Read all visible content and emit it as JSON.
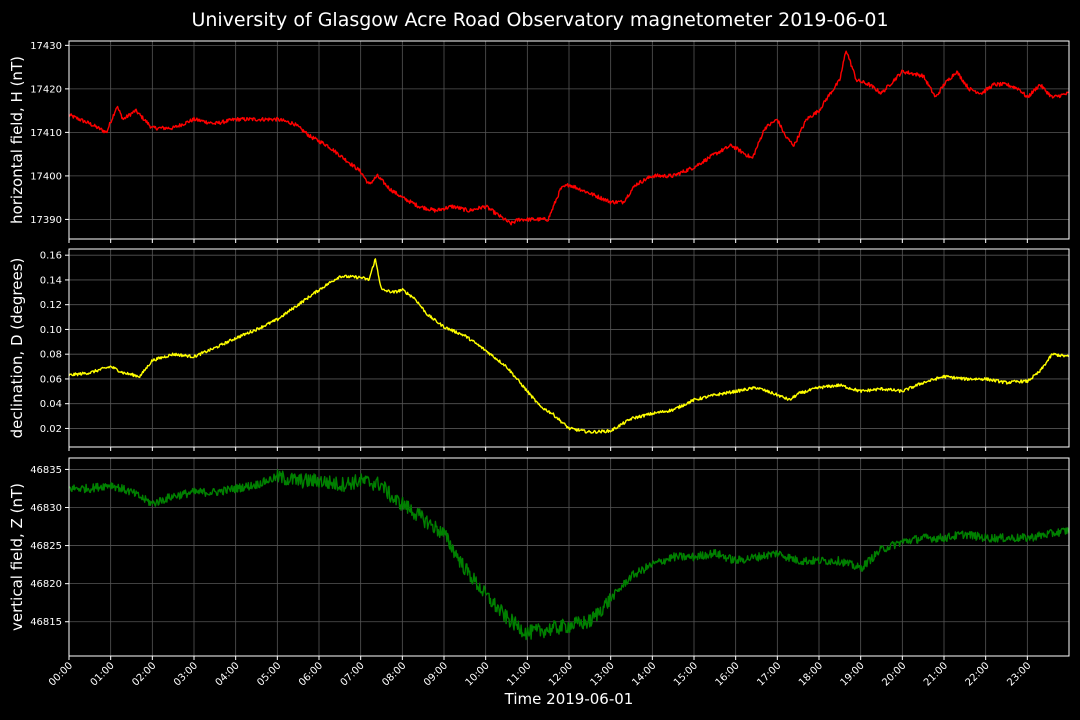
{
  "title": "University of Glasgow Acre Road Observatory magnetometer 2019-06-01",
  "xlabel": "Time 2019-06-01",
  "chart_data": [
    {
      "type": "line",
      "name": "horizontal",
      "ylabel": "horizontal field, H (nT)",
      "color": "#ff0000",
      "ylim": [
        17385.5,
        17431
      ],
      "yticks": [
        17390,
        17400,
        17410,
        17420,
        17430
      ],
      "grid": true,
      "x_hours": [
        0,
        0.5,
        0.9,
        1.15,
        1.3,
        1.6,
        2.0,
        2.5,
        3.0,
        3.5,
        4.0,
        4.5,
        5.0,
        5.4,
        5.8,
        6.2,
        6.6,
        7.0,
        7.2,
        7.4,
        7.7,
        8.0,
        8.4,
        8.8,
        9.2,
        9.6,
        10.0,
        10.3,
        10.6,
        10.8,
        11.2,
        11.5,
        11.8,
        12.0,
        12.5,
        13.0,
        13.3,
        13.6,
        14.0,
        14.5,
        15.0,
        15.5,
        15.9,
        16.4,
        16.7,
        17.0,
        17.2,
        17.4,
        17.7,
        18.0,
        18.2,
        18.5,
        18.65,
        18.9,
        19.2,
        19.5,
        20.0,
        20.5,
        20.8,
        21.0,
        21.3,
        21.6,
        21.9,
        22.2,
        22.5,
        22.8,
        23.0,
        23.3,
        23.6,
        24.0
      ],
      "y": [
        17414,
        17412,
        17410,
        17416,
        17413,
        17415,
        17411,
        17411,
        17413,
        17412,
        17413,
        17413,
        17413,
        17412,
        17409,
        17407,
        17404,
        17401,
        17398,
        17400,
        17397,
        17395,
        17393,
        17392,
        17393,
        17392,
        17393,
        17391,
        17389,
        17390,
        17390,
        17390,
        17397,
        17398,
        17396,
        17394,
        17394,
        17398,
        17400,
        17400,
        17402,
        17405,
        17407,
        17404,
        17411,
        17413,
        17409,
        17407,
        17413,
        17415,
        17418,
        17422,
        17429,
        17422,
        17421,
        17419,
        17424,
        17423,
        17418,
        17421,
        17424,
        17420,
        17419,
        17421,
        17421,
        17420,
        17418,
        17421,
        17418,
        17419
      ]
    },
    {
      "type": "line",
      "name": "declination",
      "ylabel": "declination, D (degrees)",
      "color": "#ffff00",
      "ylim": [
        0.005,
        0.165
      ],
      "yticks": [
        0.02,
        0.04,
        0.06,
        0.08,
        0.1,
        0.12,
        0.14,
        0.16
      ],
      "grid": true,
      "x_hours": [
        0,
        0.5,
        1.0,
        1.3,
        1.7,
        2.0,
        2.5,
        3.0,
        3.5,
        4.0,
        4.5,
        5.0,
        5.5,
        6.0,
        6.5,
        7.0,
        7.2,
        7.35,
        7.5,
        7.8,
        8.0,
        8.3,
        8.6,
        9.0,
        9.5,
        10.0,
        10.5,
        11.0,
        11.3,
        11.6,
        12.0,
        12.5,
        13.0,
        13.5,
        14.0,
        14.5,
        15.0,
        15.5,
        16.0,
        16.5,
        17.0,
        17.3,
        17.5,
        18.0,
        18.5,
        19.0,
        19.5,
        20.0,
        20.5,
        21.0,
        21.5,
        22.0,
        22.5,
        22.8,
        23.0,
        23.3,
        23.6,
        24.0
      ],
      "y": [
        0.063,
        0.065,
        0.07,
        0.065,
        0.062,
        0.075,
        0.08,
        0.078,
        0.085,
        0.093,
        0.1,
        0.108,
        0.12,
        0.132,
        0.143,
        0.142,
        0.14,
        0.157,
        0.132,
        0.13,
        0.132,
        0.125,
        0.112,
        0.102,
        0.095,
        0.083,
        0.07,
        0.05,
        0.038,
        0.032,
        0.02,
        0.017,
        0.018,
        0.028,
        0.032,
        0.035,
        0.043,
        0.047,
        0.05,
        0.053,
        0.047,
        0.043,
        0.048,
        0.053,
        0.055,
        0.05,
        0.052,
        0.05,
        0.057,
        0.062,
        0.06,
        0.06,
        0.057,
        0.058,
        0.058,
        0.066,
        0.08,
        0.078
      ]
    },
    {
      "type": "line",
      "name": "vertical",
      "ylabel": "vertical field, Z (nT)",
      "color": "#008000",
      "ylim": [
        46810.5,
        46836.5
      ],
      "yticks": [
        46815,
        46820,
        46825,
        46830,
        46835
      ],
      "grid": true,
      "x_hours": [
        0,
        0.5,
        1.0,
        1.5,
        2.0,
        2.5,
        3.0,
        3.5,
        4.0,
        4.5,
        5.0,
        5.5,
        6.0,
        6.5,
        7.0,
        7.5,
        7.8,
        8.0,
        8.5,
        9.0,
        9.5,
        10.0,
        10.5,
        11.0,
        11.5,
        12.0,
        12.5,
        13.0,
        13.5,
        14.0,
        14.5,
        15.0,
        15.5,
        16.0,
        16.5,
        17.0,
        17.5,
        18.0,
        18.5,
        19.0,
        19.5,
        20.0,
        20.5,
        21.0,
        21.5,
        22.0,
        22.5,
        23.0,
        23.5,
        24.0
      ],
      "y": [
        46832.5,
        46832.5,
        46833,
        46832,
        46830.5,
        46831.5,
        46832,
        46832,
        46832.5,
        46833,
        46834,
        46833.5,
        46833.5,
        46833,
        46833.5,
        46833,
        46831,
        46830.5,
        46828.5,
        46826.5,
        46822,
        46818.5,
        46815.5,
        46813.5,
        46814,
        46814.5,
        46815,
        46818,
        46821,
        46822.5,
        46823.5,
        46823.5,
        46824,
        46823,
        46823.5,
        46824,
        46823,
        46823,
        46823,
        46822,
        46824.5,
        46825.5,
        46826,
        46826,
        46826.5,
        46826,
        46826,
        46826,
        46826.5,
        46827
      ]
    }
  ],
  "xticks": [
    "00:00",
    "01:00",
    "02:00",
    "03:00",
    "04:00",
    "05:00",
    "06:00",
    "07:00",
    "08:00",
    "09:00",
    "10:00",
    "11:00",
    "12:00",
    "13:00",
    "14:00",
    "15:00",
    "16:00",
    "17:00",
    "18:00",
    "19:00",
    "20:00",
    "21:00",
    "22:00",
    "23:00"
  ],
  "xlim_hours": [
    0,
    24
  ]
}
